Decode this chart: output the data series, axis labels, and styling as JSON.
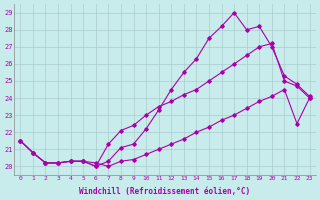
{
  "xlabel": "Windchill (Refroidissement éolien,°C)",
  "bg_color": "#c8ecec",
  "line_color": "#aa00aa",
  "grid_color": "#aacccc",
  "ylim": [
    19.5,
    29.5
  ],
  "xlim": [
    -0.5,
    23.5
  ],
  "yticks": [
    20,
    21,
    22,
    23,
    24,
    25,
    26,
    27,
    28,
    29
  ],
  "xticks": [
    0,
    1,
    2,
    3,
    4,
    5,
    6,
    7,
    8,
    9,
    10,
    11,
    12,
    13,
    14,
    15,
    16,
    17,
    18,
    19,
    20,
    21,
    22,
    23
  ],
  "series1_x": [
    0,
    1,
    2,
    3,
    4,
    5,
    6,
    7,
    8,
    9,
    10,
    11,
    12,
    13,
    14,
    15,
    16,
    17,
    18,
    19,
    20,
    21,
    22,
    23
  ],
  "series1_y": [
    21.5,
    20.8,
    20.2,
    20.2,
    20.3,
    20.3,
    20.0,
    20.3,
    21.1,
    21.3,
    22.2,
    23.3,
    24.5,
    25.5,
    26.3,
    27.5,
    28.2,
    29.0,
    28.0,
    28.2,
    27.0,
    25.3,
    24.8,
    24.1
  ],
  "series2_x": [
    0,
    1,
    2,
    3,
    4,
    5,
    6,
    7,
    8,
    9,
    10,
    11,
    12,
    13,
    14,
    15,
    16,
    17,
    18,
    19,
    20,
    21,
    22,
    23
  ],
  "series2_y": [
    21.5,
    20.8,
    20.2,
    20.2,
    20.3,
    20.3,
    20.0,
    21.3,
    22.1,
    22.4,
    23.0,
    23.5,
    23.8,
    24.2,
    24.5,
    25.0,
    25.5,
    26.0,
    26.5,
    27.0,
    27.2,
    25.0,
    24.7,
    24.0
  ],
  "series3_x": [
    0,
    1,
    2,
    3,
    4,
    5,
    6,
    7,
    8,
    9,
    10,
    11,
    12,
    13,
    14,
    15,
    16,
    17,
    18,
    19,
    20,
    21,
    22,
    23
  ],
  "series3_y": [
    21.5,
    20.8,
    20.2,
    20.2,
    20.3,
    20.3,
    20.2,
    20.0,
    20.3,
    20.4,
    20.7,
    21.0,
    21.3,
    21.6,
    22.0,
    22.3,
    22.7,
    23.0,
    23.4,
    23.8,
    24.1,
    24.5,
    22.5,
    24.0
  ]
}
